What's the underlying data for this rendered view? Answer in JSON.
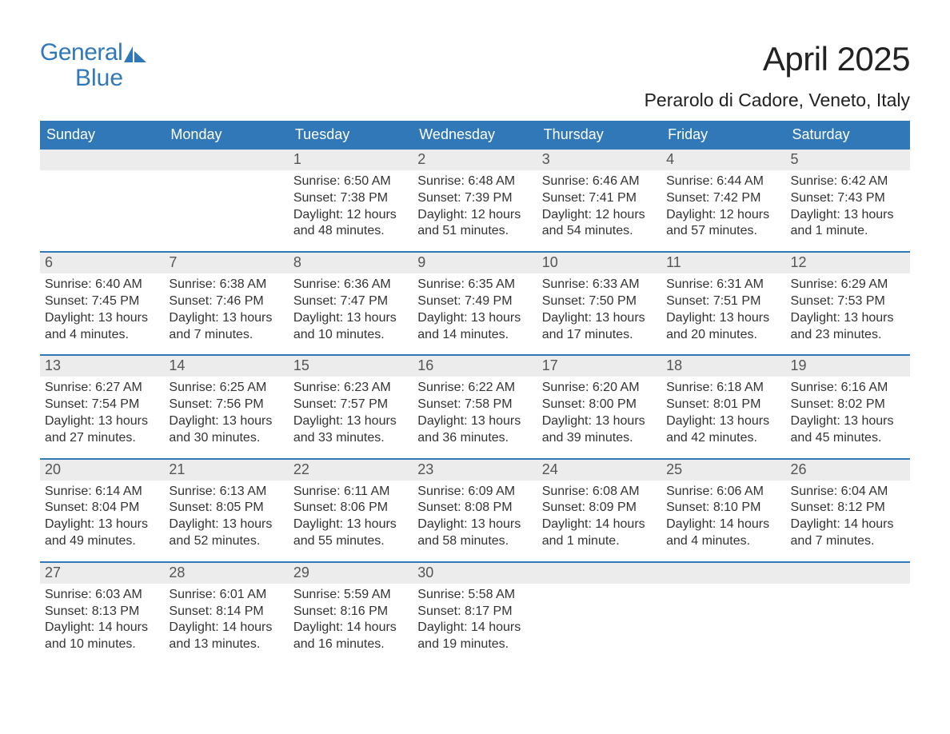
{
  "brand": {
    "line1": "General",
    "line2": "Blue"
  },
  "title": "April 2025",
  "location": "Perarolo di Cadore, Veneto, Italy",
  "colors": {
    "accent": "#3178b8",
    "header_bg": "#3178b8",
    "header_text": "#ffffff",
    "daynum_bg": "#ececec",
    "daynum_text": "#555555",
    "body_text": "#333333",
    "page_bg": "#ffffff",
    "row_border": "#3178b8"
  },
  "typography": {
    "title_fontsize": 42,
    "location_fontsize": 23,
    "dayheader_fontsize": 18,
    "daynum_fontsize": 18,
    "cell_fontsize": 16,
    "logo_fontsize": 30,
    "font_family": "Arial"
  },
  "layout": {
    "columns": 7,
    "rows": 5,
    "leading_blanks": 2,
    "trailing_blanks": 3
  },
  "day_names": [
    "Sunday",
    "Monday",
    "Tuesday",
    "Wednesday",
    "Thursday",
    "Friday",
    "Saturday"
  ],
  "days": [
    {
      "n": "1",
      "sunrise": "Sunrise: 6:50 AM",
      "sunset": "Sunset: 7:38 PM",
      "dl1": "Daylight: 12 hours",
      "dl2": "and 48 minutes."
    },
    {
      "n": "2",
      "sunrise": "Sunrise: 6:48 AM",
      "sunset": "Sunset: 7:39 PM",
      "dl1": "Daylight: 12 hours",
      "dl2": "and 51 minutes."
    },
    {
      "n": "3",
      "sunrise": "Sunrise: 6:46 AM",
      "sunset": "Sunset: 7:41 PM",
      "dl1": "Daylight: 12 hours",
      "dl2": "and 54 minutes."
    },
    {
      "n": "4",
      "sunrise": "Sunrise: 6:44 AM",
      "sunset": "Sunset: 7:42 PM",
      "dl1": "Daylight: 12 hours",
      "dl2": "and 57 minutes."
    },
    {
      "n": "5",
      "sunrise": "Sunrise: 6:42 AM",
      "sunset": "Sunset: 7:43 PM",
      "dl1": "Daylight: 13 hours",
      "dl2": "and 1 minute."
    },
    {
      "n": "6",
      "sunrise": "Sunrise: 6:40 AM",
      "sunset": "Sunset: 7:45 PM",
      "dl1": "Daylight: 13 hours",
      "dl2": "and 4 minutes."
    },
    {
      "n": "7",
      "sunrise": "Sunrise: 6:38 AM",
      "sunset": "Sunset: 7:46 PM",
      "dl1": "Daylight: 13 hours",
      "dl2": "and 7 minutes."
    },
    {
      "n": "8",
      "sunrise": "Sunrise: 6:36 AM",
      "sunset": "Sunset: 7:47 PM",
      "dl1": "Daylight: 13 hours",
      "dl2": "and 10 minutes."
    },
    {
      "n": "9",
      "sunrise": "Sunrise: 6:35 AM",
      "sunset": "Sunset: 7:49 PM",
      "dl1": "Daylight: 13 hours",
      "dl2": "and 14 minutes."
    },
    {
      "n": "10",
      "sunrise": "Sunrise: 6:33 AM",
      "sunset": "Sunset: 7:50 PM",
      "dl1": "Daylight: 13 hours",
      "dl2": "and 17 minutes."
    },
    {
      "n": "11",
      "sunrise": "Sunrise: 6:31 AM",
      "sunset": "Sunset: 7:51 PM",
      "dl1": "Daylight: 13 hours",
      "dl2": "and 20 minutes."
    },
    {
      "n": "12",
      "sunrise": "Sunrise: 6:29 AM",
      "sunset": "Sunset: 7:53 PM",
      "dl1": "Daylight: 13 hours",
      "dl2": "and 23 minutes."
    },
    {
      "n": "13",
      "sunrise": "Sunrise: 6:27 AM",
      "sunset": "Sunset: 7:54 PM",
      "dl1": "Daylight: 13 hours",
      "dl2": "and 27 minutes."
    },
    {
      "n": "14",
      "sunrise": "Sunrise: 6:25 AM",
      "sunset": "Sunset: 7:56 PM",
      "dl1": "Daylight: 13 hours",
      "dl2": "and 30 minutes."
    },
    {
      "n": "15",
      "sunrise": "Sunrise: 6:23 AM",
      "sunset": "Sunset: 7:57 PM",
      "dl1": "Daylight: 13 hours",
      "dl2": "and 33 minutes."
    },
    {
      "n": "16",
      "sunrise": "Sunrise: 6:22 AM",
      "sunset": "Sunset: 7:58 PM",
      "dl1": "Daylight: 13 hours",
      "dl2": "and 36 minutes."
    },
    {
      "n": "17",
      "sunrise": "Sunrise: 6:20 AM",
      "sunset": "Sunset: 8:00 PM",
      "dl1": "Daylight: 13 hours",
      "dl2": "and 39 minutes."
    },
    {
      "n": "18",
      "sunrise": "Sunrise: 6:18 AM",
      "sunset": "Sunset: 8:01 PM",
      "dl1": "Daylight: 13 hours",
      "dl2": "and 42 minutes."
    },
    {
      "n": "19",
      "sunrise": "Sunrise: 6:16 AM",
      "sunset": "Sunset: 8:02 PM",
      "dl1": "Daylight: 13 hours",
      "dl2": "and 45 minutes."
    },
    {
      "n": "20",
      "sunrise": "Sunrise: 6:14 AM",
      "sunset": "Sunset: 8:04 PM",
      "dl1": "Daylight: 13 hours",
      "dl2": "and 49 minutes."
    },
    {
      "n": "21",
      "sunrise": "Sunrise: 6:13 AM",
      "sunset": "Sunset: 8:05 PM",
      "dl1": "Daylight: 13 hours",
      "dl2": "and 52 minutes."
    },
    {
      "n": "22",
      "sunrise": "Sunrise: 6:11 AM",
      "sunset": "Sunset: 8:06 PM",
      "dl1": "Daylight: 13 hours",
      "dl2": "and 55 minutes."
    },
    {
      "n": "23",
      "sunrise": "Sunrise: 6:09 AM",
      "sunset": "Sunset: 8:08 PM",
      "dl1": "Daylight: 13 hours",
      "dl2": "and 58 minutes."
    },
    {
      "n": "24",
      "sunrise": "Sunrise: 6:08 AM",
      "sunset": "Sunset: 8:09 PM",
      "dl1": "Daylight: 14 hours",
      "dl2": "and 1 minute."
    },
    {
      "n": "25",
      "sunrise": "Sunrise: 6:06 AM",
      "sunset": "Sunset: 8:10 PM",
      "dl1": "Daylight: 14 hours",
      "dl2": "and 4 minutes."
    },
    {
      "n": "26",
      "sunrise": "Sunrise: 6:04 AM",
      "sunset": "Sunset: 8:12 PM",
      "dl1": "Daylight: 14 hours",
      "dl2": "and 7 minutes."
    },
    {
      "n": "27",
      "sunrise": "Sunrise: 6:03 AM",
      "sunset": "Sunset: 8:13 PM",
      "dl1": "Daylight: 14 hours",
      "dl2": "and 10 minutes."
    },
    {
      "n": "28",
      "sunrise": "Sunrise: 6:01 AM",
      "sunset": "Sunset: 8:14 PM",
      "dl1": "Daylight: 14 hours",
      "dl2": "and 13 minutes."
    },
    {
      "n": "29",
      "sunrise": "Sunrise: 5:59 AM",
      "sunset": "Sunset: 8:16 PM",
      "dl1": "Daylight: 14 hours",
      "dl2": "and 16 minutes."
    },
    {
      "n": "30",
      "sunrise": "Sunrise: 5:58 AM",
      "sunset": "Sunset: 8:17 PM",
      "dl1": "Daylight: 14 hours",
      "dl2": "and 19 minutes."
    }
  ]
}
